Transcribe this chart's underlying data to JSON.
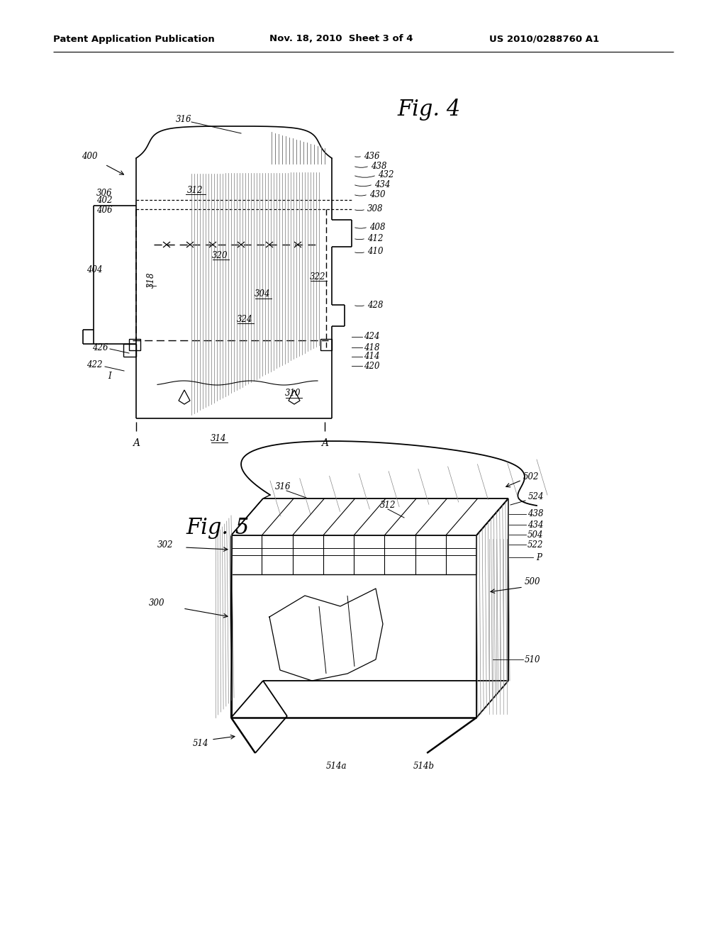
{
  "bg_color": "#ffffff",
  "header_left": "Patent Application Publication",
  "header_center": "Nov. 18, 2010  Sheet 3 of 4",
  "header_right": "US 2010/0288760 A1",
  "fig4_title": "Fig. 4",
  "fig5_title": "Fig. 5",
  "line_color": "#000000",
  "label_fontsize": 8.5,
  "header_fontsize": 9.5,
  "fig_title_fontsize": 22
}
